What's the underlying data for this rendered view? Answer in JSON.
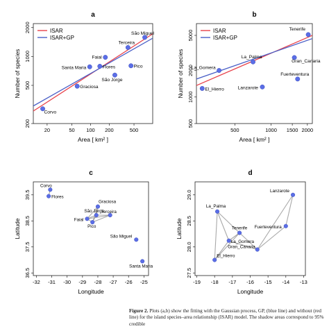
{
  "figure": {
    "caption_label": "Figure 2.",
    "caption_text": " Plots (a,b) show the fitting with the Gaussian process, GP, (blue line) and without (red line) for the island species–area relationship (ISAR) model. The shadow areas correspond to 95% credible"
  },
  "colors": {
    "isar_line": "#e8414a",
    "gp_line": "#4a5fc7",
    "points": "#5b6ee6",
    "network_edge": "#9a9a9a"
  },
  "chart_data": [
    {
      "type": "scatter",
      "panel_label": "a",
      "title": "",
      "xlabel": "Area [ km² ]",
      "ylabel": "Number of species",
      "xscale": "log",
      "yscale": "log",
      "xlim": [
        12,
        1000
      ],
      "ylim": [
        200,
        2200
      ],
      "xticks": [
        20,
        50,
        100,
        200,
        500
      ],
      "xtick_labels": [
        "20",
        "50",
        "100",
        "200",
        "500"
      ],
      "yticks": [
        200,
        500,
        1000,
        2000
      ],
      "ytick_labels": [
        "200",
        "500",
        "1000",
        "2000"
      ],
      "legend": {
        "placement": "top-left",
        "entries": [
          "ISAR",
          "ISAR+GP"
        ]
      },
      "lines": [
        {
          "name": "ISAR",
          "x": [
            12,
            1000
          ],
          "y": [
            270,
            1720
          ]
        },
        {
          "name": "ISAR+GP",
          "x": [
            12,
            1000
          ],
          "y": [
            305,
            1550
          ]
        }
      ],
      "points": [
        {
          "label": "Corvo",
          "x": 17,
          "y": 285
        },
        {
          "label": "Flores",
          "x": 141,
          "y": 790
        },
        {
          "label": "Faial",
          "x": 173,
          "y": 980
        },
        {
          "label": "Pico",
          "x": 447,
          "y": 800
        },
        {
          "label": "São Jorge",
          "x": 246,
          "y": 640
        },
        {
          "label": "Graciosa",
          "x": 61,
          "y": 490
        },
        {
          "label": "Terceira",
          "x": 400,
          "y": 1240
        },
        {
          "label": "São Miguel",
          "x": 745,
          "y": 1580
        },
        {
          "label": "Santa Maria",
          "x": 97,
          "y": 780
        }
      ]
    },
    {
      "type": "scatter",
      "panel_label": "b",
      "title": "",
      "xlabel": "Area [ km² ]",
      "ylabel": "Number of species",
      "xscale": "log",
      "yscale": "log",
      "xlim": [
        240,
        2200
      ],
      "ylim": [
        500,
        6800
      ],
      "xticks": [
        500,
        1000,
        1500,
        2000
      ],
      "xtick_labels": [
        "500",
        "1000",
        "1500",
        "2000"
      ],
      "yticks": [
        500,
        1000,
        2000,
        5000
      ],
      "ytick_labels": [
        "500",
        "1000",
        "2000",
        "5000"
      ],
      "legend": {
        "placement": "top-left",
        "entries": [
          "ISAR",
          "ISAR+GP"
        ]
      },
      "lines": [
        {
          "name": "ISAR",
          "x": [
            240,
            2200
          ],
          "y": [
            1350,
            5000
          ]
        },
        {
          "name": "ISAR+GP",
          "x": [
            240,
            2200
          ],
          "y": [
            1600,
            4600
          ]
        }
      ],
      "points": [
        {
          "label": "El_Hierro",
          "x": 268,
          "y": 1250
        },
        {
          "label": "La_Gomera",
          "x": 370,
          "y": 2000
        },
        {
          "label": "La_Palma",
          "x": 708,
          "y": 2500
        },
        {
          "label": "Lanzarote",
          "x": 846,
          "y": 1300
        },
        {
          "label": "Gran_Canaria",
          "x": 1560,
          "y": 2800
        },
        {
          "label": "Fuerteventura",
          "x": 1660,
          "y": 1600
        },
        {
          "label": "Tenerife",
          "x": 2034,
          "y": 5100
        }
      ]
    },
    {
      "type": "network",
      "panel_label": "c",
      "title": "",
      "xlabel": "Longitude",
      "ylabel": "Latitude",
      "xlim": [
        -32.2,
        -24.7
      ],
      "ylim": [
        36.4,
        40.0
      ],
      "xticks": [
        -32,
        -31,
        -30,
        -29,
        -28,
        -27,
        -26,
        -25
      ],
      "xtick_labels": [
        "-32",
        "-31",
        "-30",
        "-29",
        "-28",
        "-27",
        "-26",
        "-25"
      ],
      "yticks": [
        36.5,
        37.5,
        38.5,
        39.5
      ],
      "ytick_labels": [
        "36.5",
        "37.5",
        "38.5",
        "39.5"
      ],
      "points": [
        {
          "label": "Corvo",
          "x": -31.1,
          "y": 39.7
        },
        {
          "label": "Flores",
          "x": -31.2,
          "y": 39.45
        },
        {
          "label": "Graciosa",
          "x": -28.0,
          "y": 39.05
        },
        {
          "label": "São Jorge",
          "x": -28.1,
          "y": 38.72
        },
        {
          "label": "Terceira",
          "x": -27.2,
          "y": 38.72
        },
        {
          "label": "Faial",
          "x": -28.7,
          "y": 38.58
        },
        {
          "label": "Pico",
          "x": -28.35,
          "y": 38.45
        },
        {
          "label": "São Miguel",
          "x": -25.5,
          "y": 37.78
        },
        {
          "label": "Santa Maria",
          "x": -25.1,
          "y": 36.95
        }
      ],
      "edges": [
        [
          0,
          1
        ],
        [
          2,
          3
        ],
        [
          2,
          5
        ],
        [
          2,
          6
        ],
        [
          3,
          4
        ],
        [
          3,
          5
        ],
        [
          3,
          6
        ],
        [
          4,
          5
        ],
        [
          4,
          6
        ],
        [
          5,
          6
        ]
      ]
    },
    {
      "type": "network",
      "panel_label": "d",
      "title": "",
      "xlabel": "Longitude",
      "ylabel": "Latitude",
      "xlim": [
        -19.1,
        -12.9
      ],
      "ylim": [
        27.45,
        29.25
      ],
      "xticks": [
        -19,
        -18,
        -17,
        -16,
        -15,
        -14,
        -13
      ],
      "xtick_labels": [
        "-19",
        "-18",
        "-17",
        "-16",
        "-15",
        "-14",
        "-13"
      ],
      "yticks": [
        27.5,
        28.0,
        28.5,
        29.0
      ],
      "ytick_labels": [
        "27.5",
        "28.0",
        "28.5",
        "29.0"
      ],
      "points": [
        {
          "label": "Lanzarote",
          "x": -13.6,
          "y": 29.0
        },
        {
          "label": "La_Palma",
          "x": -17.85,
          "y": 28.68
        },
        {
          "label": "Fuerteventura",
          "x": -14.0,
          "y": 28.4
        },
        {
          "label": "Tenerife",
          "x": -16.6,
          "y": 28.27
        },
        {
          "label": "La_Gomera",
          "x": -17.2,
          "y": 28.12
        },
        {
          "label": "Gran_Canaria",
          "x": -15.6,
          "y": 27.95
        },
        {
          "label": "El_Hierro",
          "x": -18.0,
          "y": 27.75
        }
      ],
      "edges": [
        [
          0,
          2
        ],
        [
          0,
          5
        ],
        [
          1,
          3
        ],
        [
          1,
          4
        ],
        [
          1,
          6
        ],
        [
          2,
          5
        ],
        [
          3,
          4
        ],
        [
          3,
          5
        ],
        [
          3,
          6
        ],
        [
          4,
          5
        ],
        [
          4,
          6
        ]
      ]
    }
  ]
}
